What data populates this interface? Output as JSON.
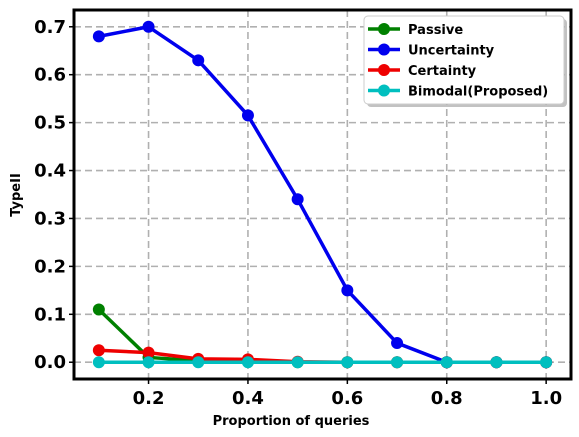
{
  "chart_data": {
    "type": "line",
    "xlabel": "Proportion of queries",
    "ylabel": "TypeII",
    "xlim": [
      0.05,
      1.05
    ],
    "ylim": [
      -0.035,
      0.735
    ],
    "x": [
      0.1,
      0.2,
      0.3,
      0.4,
      0.5,
      0.6,
      0.7,
      0.8,
      0.9,
      1.0
    ],
    "xticks": [
      0.2,
      0.4,
      0.6,
      0.8,
      1.0
    ],
    "xtick_labels": [
      "0.2",
      "0.4",
      "0.6",
      "0.8",
      "1.0"
    ],
    "yticks": [
      0.0,
      0.1,
      0.2,
      0.3,
      0.4,
      0.5,
      0.6,
      0.7
    ],
    "ytick_labels": [
      "0.0",
      "0.1",
      "0.2",
      "0.3",
      "0.4",
      "0.5",
      "0.6",
      "0.7"
    ],
    "grid": true,
    "legend_position": "top-right",
    "series": [
      {
        "name": "Passive",
        "color": "#008000",
        "values": [
          0.11,
          0.01,
          0.003,
          0.001,
          0.0,
          0.0,
          0.0,
          0.0,
          0.0,
          0.0
        ]
      },
      {
        "name": "Uncertainty",
        "color": "#0000ee",
        "values": [
          0.68,
          0.7,
          0.63,
          0.515,
          0.34,
          0.15,
          0.04,
          0.0,
          0.0,
          0.0
        ]
      },
      {
        "name": "Certainty",
        "color": "#ee0000",
        "values": [
          0.025,
          0.02,
          0.007,
          0.006,
          0.001,
          0.0,
          0.0,
          0.0,
          0.0,
          0.0
        ]
      },
      {
        "name": "Bimodal(Proposed)",
        "color": "#00bfbf",
        "values": [
          0.0,
          0.0,
          0.0,
          0.0,
          0.0,
          0.0,
          0.0,
          0.0,
          0.0,
          0.0
        ]
      }
    ]
  }
}
